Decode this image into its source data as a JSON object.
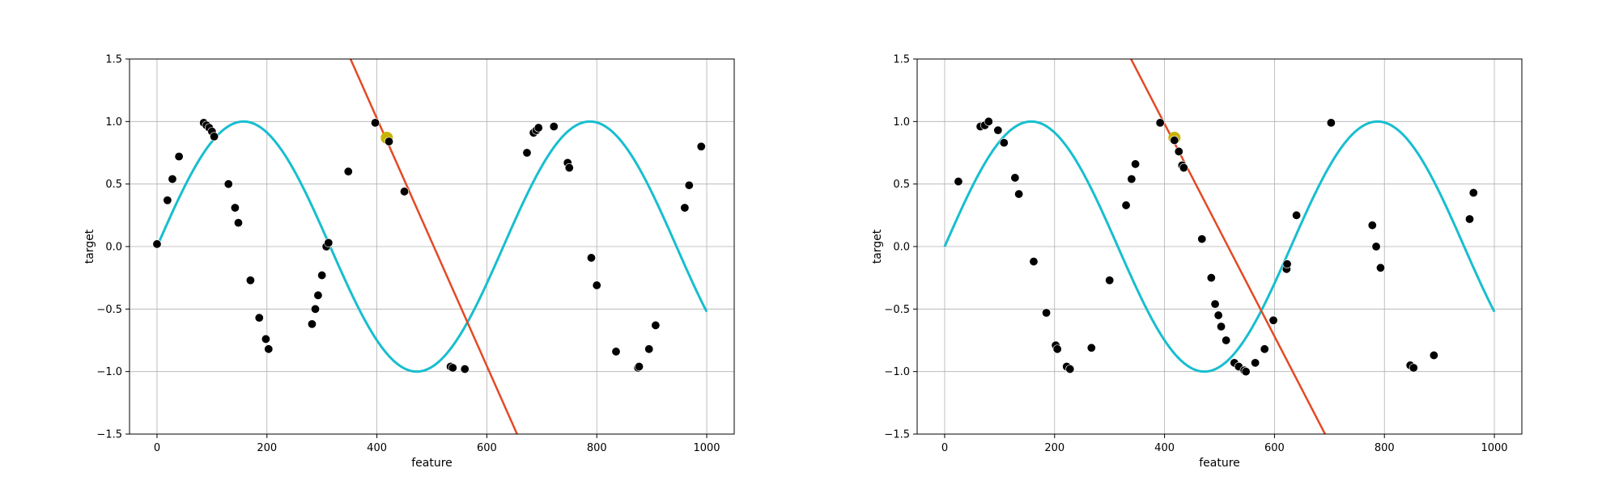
{
  "chart_data": [
    {
      "type": "scatter",
      "xlabel": "feature",
      "ylabel": "target",
      "xlim": [
        -50,
        1050
      ],
      "ylim": [
        -1.5,
        1.5
      ],
      "xticks": [
        0,
        200,
        400,
        600,
        800,
        1000
      ],
      "yticks": [
        -1.5,
        -1.0,
        -0.5,
        0.0,
        0.5,
        1.0,
        1.5
      ],
      "grid": true,
      "colors": {
        "curve": "#17becf",
        "line": "#e34a24",
        "points": "#000000",
        "highlight": "#c8b400"
      },
      "curve": {
        "kind": "sine",
        "period": 630,
        "amplitude": 1,
        "x_range": [
          0,
          1000
        ]
      },
      "highlight_point": {
        "x": 418,
        "y": 0.87
      },
      "line": {
        "points": [
          [
            352,
            1.5
          ],
          [
            655,
            -1.5
          ]
        ]
      },
      "points": {
        "x": [
          0,
          19,
          28,
          40,
          85,
          90,
          95,
          100,
          104,
          130,
          142,
          148,
          170,
          186,
          198,
          203,
          282,
          288,
          293,
          300,
          308,
          312,
          348,
          397,
          422,
          450,
          534,
          538,
          560,
          673,
          685,
          690,
          694,
          722,
          747,
          750,
          790,
          800,
          835,
          875,
          877,
          895,
          907,
          960,
          968,
          990
        ],
        "y": [
          0.02,
          0.37,
          0.54,
          0.72,
          0.99,
          0.97,
          0.95,
          0.92,
          0.88,
          0.5,
          0.31,
          0.19,
          -0.27,
          -0.57,
          -0.74,
          -0.82,
          -0.62,
          -0.5,
          -0.39,
          -0.23,
          0.0,
          0.03,
          0.6,
          0.99,
          0.84,
          0.44,
          -0.96,
          -0.97,
          -0.98,
          0.75,
          0.91,
          0.93,
          0.95,
          0.96,
          0.67,
          0.63,
          -0.09,
          -0.31,
          -0.84,
          -0.97,
          -0.96,
          -0.82,
          -0.63,
          0.31,
          0.49,
          0.8
        ]
      }
    },
    {
      "type": "scatter",
      "xlabel": "feature",
      "ylabel": "target",
      "xlim": [
        -50,
        1050
      ],
      "ylim": [
        -1.5,
        1.5
      ],
      "xticks": [
        0,
        200,
        400,
        600,
        800,
        1000
      ],
      "yticks": [
        -1.5,
        -1.0,
        -0.5,
        0.0,
        0.5,
        1.0,
        1.5
      ],
      "grid": true,
      "colors": {
        "curve": "#17becf",
        "line": "#e34a24",
        "points": "#000000",
        "highlight": "#c8b400"
      },
      "curve": {
        "kind": "sine",
        "period": 630,
        "amplitude": 1,
        "x_range": [
          0,
          1000
        ]
      },
      "highlight_point": {
        "x": 418,
        "y": 0.87
      },
      "line": {
        "points": [
          [
            339,
            1.5
          ],
          [
            692,
            -1.5
          ]
        ]
      },
      "points": {
        "x": [
          25,
          65,
          73,
          80,
          97,
          108,
          128,
          135,
          162,
          185,
          202,
          205,
          222,
          228,
          267,
          300,
          330,
          340,
          347,
          392,
          418,
          426,
          432,
          435,
          468,
          485,
          492,
          498,
          503,
          512,
          527,
          535,
          545,
          548,
          565,
          582,
          598,
          622,
          623,
          640,
          703,
          778,
          785,
          793,
          847,
          853,
          890,
          955,
          962
        ],
        "y": [
          0.52,
          0.96,
          0.97,
          1.0,
          0.93,
          0.83,
          0.55,
          0.42,
          -0.12,
          -0.53,
          -0.79,
          -0.82,
          -0.96,
          -0.98,
          -0.81,
          -0.27,
          0.33,
          0.54,
          0.66,
          0.99,
          0.85,
          0.76,
          0.65,
          0.63,
          0.06,
          -0.25,
          -0.46,
          -0.55,
          -0.64,
          -0.75,
          -0.93,
          -0.96,
          -0.99,
          -1.0,
          -0.93,
          -0.82,
          -0.59,
          -0.18,
          -0.14,
          0.25,
          0.99,
          0.17,
          0.0,
          -0.17,
          -0.95,
          -0.97,
          -0.87,
          0.22,
          0.43
        ]
      }
    }
  ]
}
